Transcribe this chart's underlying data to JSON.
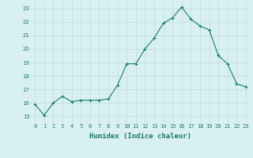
{
  "x": [
    0,
    1,
    2,
    3,
    4,
    5,
    6,
    7,
    8,
    9,
    10,
    11,
    12,
    13,
    14,
    15,
    16,
    17,
    18,
    19,
    20,
    21,
    22,
    23
  ],
  "y": [
    15.9,
    15.1,
    16.0,
    16.5,
    16.1,
    16.2,
    16.2,
    16.2,
    16.3,
    17.3,
    18.9,
    18.9,
    20.0,
    20.8,
    21.9,
    22.3,
    23.1,
    22.2,
    21.7,
    21.4,
    19.5,
    18.9,
    17.4,
    17.2
  ],
  "line_color": "#1a7a6e",
  "marker": "+",
  "marker_size": 3.5,
  "bg_color": "#d8f0f0",
  "grid_color": "#c0dada",
  "xlabel": "Humidex (Indice chaleur)",
  "xlim": [
    -0.5,
    23.5
  ],
  "ylim": [
    14.5,
    23.5
  ],
  "yticks": [
    15,
    16,
    17,
    18,
    19,
    20,
    21,
    22,
    23
  ],
  "xticks": [
    0,
    1,
    2,
    3,
    4,
    5,
    6,
    7,
    8,
    9,
    10,
    11,
    12,
    13,
    14,
    15,
    16,
    17,
    18,
    19,
    20,
    21,
    22,
    23
  ],
  "label_fontsize": 6.5,
  "tick_fontsize": 5.0,
  "linewidth": 0.8,
  "marker_linewidth": 0.8
}
